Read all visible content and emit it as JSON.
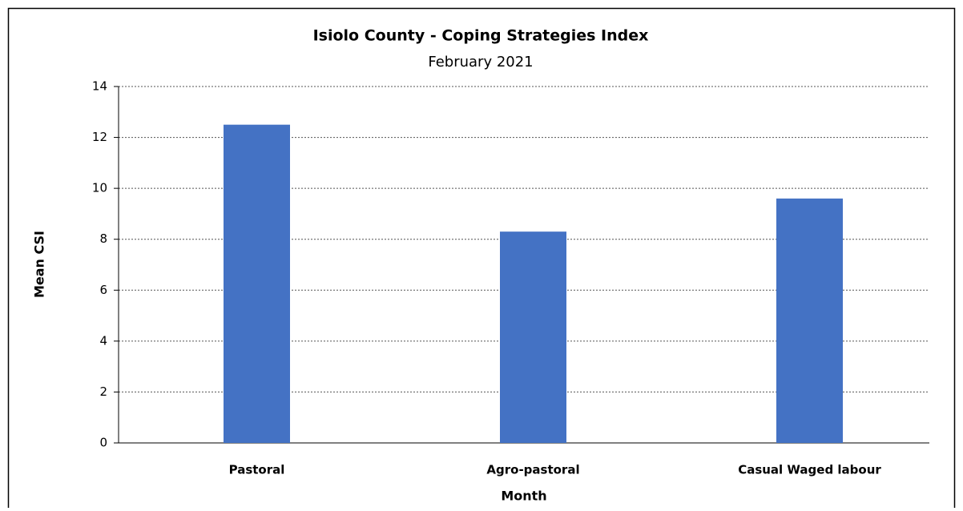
{
  "chart_data": {
    "type": "bar",
    "title": "Isiolo County - Coping Strategies Index",
    "subtitle": "February 2021",
    "x_label": "Month",
    "y_label": "Mean CSI",
    "categories": [
      "Pastoral",
      "Agro-pastoral",
      "Casual Waged labour"
    ],
    "values": [
      12.5,
      8.3,
      9.6
    ],
    "color": "#4472c4",
    "ylim": [
      0,
      14
    ],
    "yticks": [
      0,
      2,
      4,
      6,
      8,
      10,
      12,
      14
    ],
    "grid": true
  }
}
